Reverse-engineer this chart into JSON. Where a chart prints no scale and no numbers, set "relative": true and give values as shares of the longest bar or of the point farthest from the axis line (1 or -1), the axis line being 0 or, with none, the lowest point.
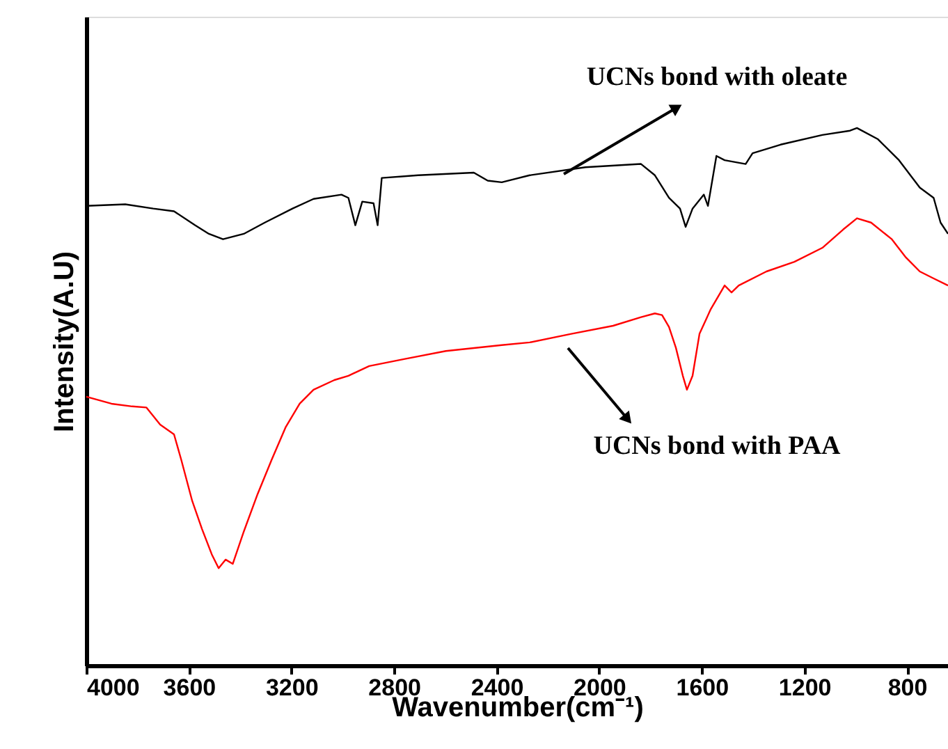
{
  "chart_data": {
    "type": "line",
    "relative": true,
    "xlabel": "Wavenumber(cm⁻¹)",
    "ylabel": "Intensity(A.U)",
    "xlim": [
      4000,
      640
    ],
    "xticks": [
      4000,
      3600,
      3200,
      2800,
      2400,
      2000,
      1600,
      1200,
      800
    ],
    "grid": false,
    "marker": "none",
    "line_style": "solid",
    "series": [
      {
        "color": "#000000",
        "x": [
          4000,
          3848,
          3739,
          3658,
          3576,
          3522,
          3467,
          3386,
          3304,
          3196,
          3114,
          3005,
          2978,
          2951,
          2924,
          2880,
          2864,
          2848,
          2706,
          2489,
          2435,
          2380,
          2271,
          2054,
          1837,
          1783,
          1728,
          1685,
          1663,
          1636,
          1592,
          1576,
          1543,
          1511,
          1429,
          1402,
          1293,
          1130,
          1022,
          995,
          913,
          831,
          750,
          696,
          669,
          640
        ],
        "values": [
          0.855,
          0.858,
          0.85,
          0.845,
          0.819,
          0.803,
          0.793,
          0.803,
          0.824,
          0.85,
          0.868,
          0.876,
          0.87,
          0.819,
          0.863,
          0.86,
          0.819,
          0.907,
          0.912,
          0.917,
          0.902,
          0.899,
          0.912,
          0.927,
          0.933,
          0.912,
          0.87,
          0.85,
          0.816,
          0.85,
          0.876,
          0.855,
          0.948,
          0.94,
          0.933,
          0.953,
          0.969,
          0.987,
          0.995,
          1.0,
          0.979,
          0.94,
          0.889,
          0.87,
          0.824,
          0.803
        ]
      },
      {
        "color": "#ff0000",
        "x": [
          4000,
          3902,
          3821,
          3766,
          3712,
          3658,
          3630,
          3587,
          3549,
          3511,
          3484,
          3457,
          3429,
          3386,
          3332,
          3277,
          3223,
          3168,
          3114,
          3033,
          2978,
          2897,
          2761,
          2598,
          2380,
          2271,
          2109,
          1946,
          1837,
          1783,
          1755,
          1728,
          1701,
          1674,
          1658,
          1636,
          1609,
          1565,
          1511,
          1484,
          1456,
          1348,
          1239,
          1130,
          1049,
          995,
          940,
          859,
          804,
          750,
          696,
          640
        ],
        "values": [
          0.5,
          0.487,
          0.482,
          0.48,
          0.448,
          0.43,
          0.383,
          0.306,
          0.254,
          0.207,
          0.181,
          0.197,
          0.189,
          0.249,
          0.319,
          0.383,
          0.443,
          0.487,
          0.513,
          0.531,
          0.539,
          0.557,
          0.57,
          0.585,
          0.596,
          0.601,
          0.617,
          0.632,
          0.648,
          0.655,
          0.652,
          0.63,
          0.591,
          0.539,
          0.513,
          0.539,
          0.617,
          0.663,
          0.707,
          0.694,
          0.707,
          0.733,
          0.751,
          0.777,
          0.811,
          0.832,
          0.824,
          0.793,
          0.759,
          0.733,
          0.72,
          0.707
        ]
      }
    ],
    "annotations": [
      "UCNs bond with oleate",
      "UCNs bond with PAA"
    ]
  }
}
